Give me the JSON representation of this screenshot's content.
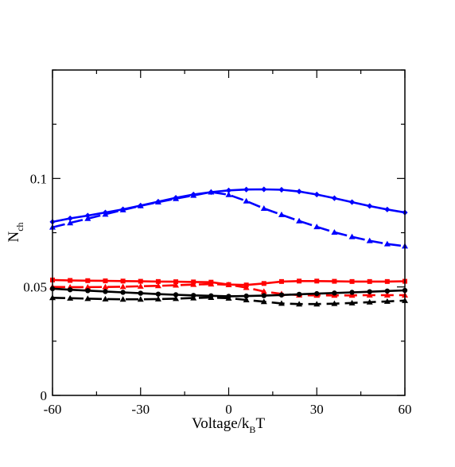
{
  "chart_data": {
    "type": "line",
    "xlabel": {
      "main": "Voltage/k",
      "sub": "B",
      "tail": "T"
    },
    "ylabel": {
      "main": "N",
      "sub": "ch"
    },
    "xlim": [
      -60,
      60
    ],
    "ylim": [
      0,
      0.15
    ],
    "xticks": [
      -60,
      -30,
      0,
      30,
      60
    ],
    "xtick_labels": [
      "-60",
      "-30",
      "0",
      "30",
      "60"
    ],
    "yticks": [
      0,
      0.05,
      0.1
    ],
    "ytick_labels": [
      "0",
      "0.05",
      "0.1"
    ],
    "grid": false,
    "series": [
      {
        "color": "#0000ff",
        "dash": "solid",
        "marker": "diamond",
        "x": [
          -60,
          -54,
          -48,
          -42,
          -36,
          -30,
          -24,
          -18,
          -12,
          -6,
          0,
          6,
          12,
          18,
          24,
          30,
          36,
          42,
          48,
          54,
          60
        ],
        "y": [
          0.08,
          0.0816,
          0.0829,
          0.0843,
          0.0858,
          0.0875,
          0.0893,
          0.0911,
          0.0926,
          0.0937,
          0.0945,
          0.0949,
          0.095,
          0.0948,
          0.094,
          0.0926,
          0.0909,
          0.0891,
          0.0873,
          0.0857,
          0.0843
        ]
      },
      {
        "color": "#0000ff",
        "dash": "dashed",
        "marker": "triangle",
        "x": [
          -60,
          -54,
          -48,
          -42,
          -36,
          -30,
          -24,
          -18,
          -12,
          -6,
          0,
          6,
          12,
          18,
          24,
          30,
          36,
          42,
          48,
          54,
          60
        ],
        "y": [
          0.0775,
          0.0795,
          0.0815,
          0.0835,
          0.0855,
          0.0874,
          0.0891,
          0.0907,
          0.0922,
          0.0937,
          0.0925,
          0.0896,
          0.0862,
          0.0833,
          0.0804,
          0.0777,
          0.0752,
          0.0731,
          0.0713,
          0.0698,
          0.0688
        ]
      },
      {
        "color": "#ff0000",
        "dash": "solid",
        "marker": "square",
        "x": [
          -60,
          -54,
          -48,
          -42,
          -36,
          -30,
          -24,
          -18,
          -12,
          -6,
          0,
          6,
          12,
          18,
          24,
          30,
          36,
          42,
          48,
          54,
          60
        ],
        "y": [
          0.0532,
          0.053,
          0.0529,
          0.0528,
          0.0527,
          0.0526,
          0.0525,
          0.0524,
          0.0523,
          0.0522,
          0.0511,
          0.0509,
          0.0516,
          0.0525,
          0.0527,
          0.0527,
          0.0526,
          0.0525,
          0.0525,
          0.0525,
          0.0526
        ]
      },
      {
        "color": "#ff0000",
        "dash": "dashed",
        "marker": "triangle",
        "x": [
          -60,
          -54,
          -48,
          -42,
          -36,
          -30,
          -24,
          -18,
          -12,
          -6,
          0,
          6,
          12,
          18,
          24,
          30,
          36,
          42,
          48,
          54,
          60
        ],
        "y": [
          0.05,
          0.0499,
          0.0499,
          0.05,
          0.0501,
          0.0503,
          0.0505,
          0.0508,
          0.0511,
          0.0513,
          0.051,
          0.0497,
          0.0479,
          0.0468,
          0.0462,
          0.0461,
          0.0461,
          0.0461,
          0.0462,
          0.0462,
          0.0462
        ]
      },
      {
        "color": "#000000",
        "dash": "solid",
        "marker": "circle",
        "x": [
          -60,
          -54,
          -48,
          -42,
          -36,
          -30,
          -24,
          -18,
          -12,
          -6,
          0,
          6,
          12,
          18,
          24,
          30,
          36,
          42,
          48,
          54,
          60
        ],
        "y": [
          0.0492,
          0.0487,
          0.0483,
          0.0479,
          0.0475,
          0.0471,
          0.0467,
          0.0464,
          0.0461,
          0.0459,
          0.0457,
          0.0458,
          0.046,
          0.0463,
          0.0466,
          0.0469,
          0.0472,
          0.0475,
          0.0478,
          0.0481,
          0.0484
        ]
      },
      {
        "color": "#000000",
        "dash": "dashed",
        "marker": "triangle",
        "x": [
          -60,
          -54,
          -48,
          -42,
          -36,
          -30,
          -24,
          -18,
          -12,
          -6,
          0,
          6,
          12,
          18,
          24,
          30,
          36,
          42,
          48,
          54,
          60
        ],
        "y": [
          0.045,
          0.0448,
          0.0446,
          0.0444,
          0.0443,
          0.0443,
          0.0444,
          0.0446,
          0.0449,
          0.0451,
          0.0448,
          0.044,
          0.0432,
          0.0424,
          0.0421,
          0.0421,
          0.0423,
          0.0426,
          0.043,
          0.0433,
          0.0437
        ]
      }
    ]
  }
}
